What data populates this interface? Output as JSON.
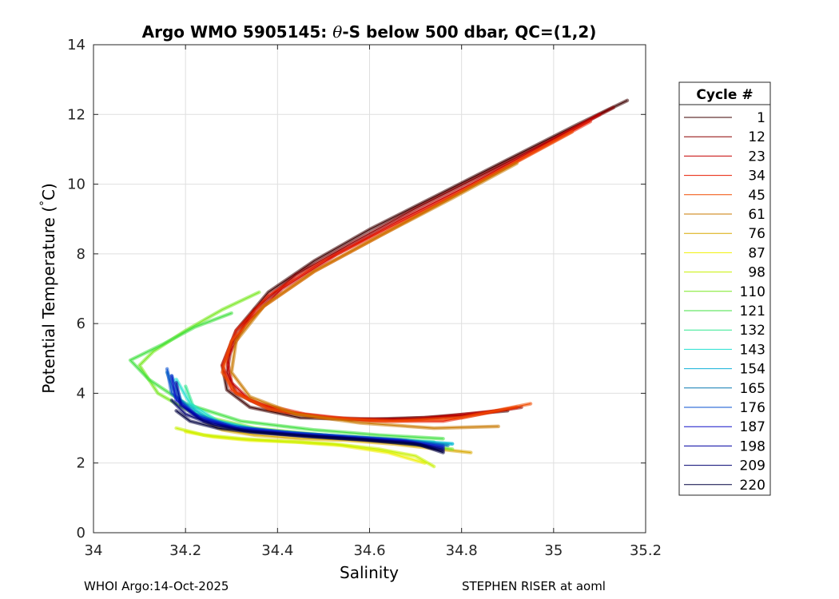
{
  "chart_data": {
    "type": "line",
    "title_prefix": "Argo WMO 5905145: ",
    "title_theta": "θ",
    "title_suffix": "-S below 500 dbar,  QC=(1,2)",
    "xlabel": "Salinity",
    "ylabel_main": "Potential Temperature (",
    "ylabel_deg": "°",
    "ylabel_end": "C)",
    "xlim": [
      34,
      35.2
    ],
    "ylim": [
      0,
      14
    ],
    "xticks": [
      34,
      34.2,
      34.4,
      34.6,
      34.8,
      35,
      35.2
    ],
    "xtick_labels": [
      "34",
      "34.2",
      "34.4",
      "34.6",
      "34.8",
      "35",
      "35.2"
    ],
    "yticks": [
      0,
      2,
      4,
      6,
      8,
      10,
      12,
      14
    ],
    "ytick_labels": [
      "0",
      "2",
      "4",
      "6",
      "8",
      "10",
      "12",
      "14"
    ],
    "grid": true,
    "legend_title": "Cycle #",
    "legend_position": "right-outside",
    "legend": [
      {
        "label": "1",
        "color": "#3d0000"
      },
      {
        "label": "12",
        "color": "#8b0000"
      },
      {
        "label": "23",
        "color": "#c40000"
      },
      {
        "label": "34",
        "color": "#e81c00"
      },
      {
        "label": "45",
        "color": "#f04a00"
      },
      {
        "label": "61",
        "color": "#c87800"
      },
      {
        "label": "76",
        "color": "#d8a800"
      },
      {
        "label": "87",
        "color": "#f0f000"
      },
      {
        "label": "98",
        "color": "#c8f000"
      },
      {
        "label": "110",
        "color": "#78e820"
      },
      {
        "label": "121",
        "color": "#40e040"
      },
      {
        "label": "132",
        "color": "#30e890"
      },
      {
        "label": "143",
        "color": "#20e0d0"
      },
      {
        "label": "154",
        "color": "#10b0d8"
      },
      {
        "label": "165",
        "color": "#0878b0"
      },
      {
        "label": "176",
        "color": "#0850d0"
      },
      {
        "label": "187",
        "color": "#1010c8"
      },
      {
        "label": "198",
        "color": "#0000a0"
      },
      {
        "label": "209",
        "color": "#000070"
      },
      {
        "label": "220",
        "color": "#000040"
      }
    ],
    "series": [
      {
        "color": "#3d0000",
        "x": [
          35.16,
          35.05,
          34.9,
          34.75,
          34.6,
          34.48,
          34.38,
          34.31,
          34.28,
          34.29,
          34.34,
          34.45,
          34.58,
          34.72,
          34.9
        ],
        "y": [
          12.4,
          11.7,
          10.7,
          9.7,
          8.7,
          7.8,
          6.9,
          5.8,
          4.8,
          4.1,
          3.6,
          3.3,
          3.25,
          3.3,
          3.5
        ]
      },
      {
        "color": "#8b0000",
        "x": [
          35.13,
          35.0,
          34.85,
          34.7,
          34.56,
          34.44,
          34.35,
          34.3,
          34.29,
          34.31,
          34.38,
          34.5,
          34.64,
          34.8,
          34.93
        ],
        "y": [
          12.2,
          11.3,
          10.3,
          9.3,
          8.3,
          7.4,
          6.4,
          5.4,
          4.6,
          4.0,
          3.55,
          3.3,
          3.25,
          3.35,
          3.6
        ]
      },
      {
        "color": "#c40000",
        "x": [
          35.1,
          34.96,
          34.82,
          34.67,
          34.53,
          34.41,
          34.33,
          34.29,
          34.3,
          34.34,
          34.42,
          34.55,
          34.7,
          34.88
        ],
        "y": [
          12.0,
          11.0,
          10.0,
          9.0,
          8.0,
          7.0,
          6.0,
          5.0,
          4.3,
          3.8,
          3.45,
          3.25,
          3.25,
          3.5
        ]
      },
      {
        "color": "#e81c00",
        "x": [
          35.08,
          34.94,
          34.8,
          34.65,
          34.5,
          34.38,
          34.31,
          34.28,
          34.3,
          34.36,
          34.46,
          34.6,
          34.76,
          34.92
        ],
        "y": [
          11.8,
          10.8,
          9.8,
          8.8,
          7.8,
          6.8,
          5.8,
          4.8,
          4.1,
          3.7,
          3.4,
          3.2,
          3.2,
          3.6
        ]
      },
      {
        "color": "#f04a00",
        "x": [
          35.04,
          34.9,
          34.76,
          34.62,
          34.48,
          34.37,
          34.3,
          34.28,
          34.31,
          34.38,
          34.5,
          34.65,
          34.8,
          34.95
        ],
        "y": [
          11.5,
          10.5,
          9.5,
          8.5,
          7.5,
          6.5,
          5.5,
          4.6,
          4.0,
          3.55,
          3.3,
          3.2,
          3.3,
          3.7
        ]
      },
      {
        "color": "#c87800",
        "x": [
          34.92,
          34.78,
          34.62,
          34.48,
          34.37,
          34.31,
          34.3,
          34.34,
          34.44,
          34.58,
          34.74,
          34.88
        ],
        "y": [
          10.6,
          9.6,
          8.5,
          7.5,
          6.5,
          5.5,
          4.6,
          3.9,
          3.4,
          3.15,
          3.0,
          3.05
        ]
      },
      {
        "color": "#d8a800",
        "x": [
          34.24,
          34.28,
          34.35,
          34.45,
          34.55,
          34.65,
          34.75,
          34.82
        ],
        "y": [
          3.2,
          2.95,
          2.8,
          2.7,
          2.65,
          2.55,
          2.4,
          2.3
        ]
      },
      {
        "color": "#f0f000",
        "x": [
          34.2,
          34.26,
          34.34,
          34.44,
          34.54,
          34.64,
          34.72
        ],
        "y": [
          2.9,
          2.75,
          2.65,
          2.6,
          2.5,
          2.3,
          2.0
        ]
      },
      {
        "color": "#c8f000",
        "x": [
          34.18,
          34.24,
          34.32,
          34.42,
          34.52,
          34.62,
          34.7,
          34.74
        ],
        "y": [
          3.0,
          2.8,
          2.7,
          2.62,
          2.55,
          2.4,
          2.2,
          1.9
        ]
      },
      {
        "color": "#78e820",
        "x": [
          34.36,
          34.28,
          34.2,
          34.13,
          34.1,
          34.14,
          34.22,
          34.35,
          34.5,
          34.66,
          34.78
        ],
        "y": [
          6.9,
          6.4,
          5.8,
          5.2,
          4.8,
          4.0,
          3.4,
          3.0,
          2.8,
          2.6,
          2.4
        ]
      },
      {
        "color": "#40e040",
        "x": [
          34.3,
          34.22,
          34.15,
          34.08,
          34.12,
          34.2,
          34.32,
          34.48,
          34.62,
          34.76
        ],
        "y": [
          6.3,
          5.9,
          5.4,
          4.95,
          4.4,
          3.7,
          3.2,
          2.95,
          2.8,
          2.7
        ]
      },
      {
        "color": "#30e890",
        "x": [
          34.2,
          34.22,
          34.28,
          34.38,
          34.5,
          34.62,
          34.74
        ],
        "y": [
          4.2,
          3.5,
          3.1,
          2.9,
          2.8,
          2.7,
          2.6
        ]
      },
      {
        "color": "#20e0d0",
        "x": [
          34.18,
          34.21,
          34.27,
          34.36,
          34.48,
          34.6,
          34.72,
          34.78
        ],
        "y": [
          4.4,
          3.7,
          3.2,
          2.95,
          2.8,
          2.7,
          2.6,
          2.55
        ]
      },
      {
        "color": "#10b0d8",
        "x": [
          34.17,
          34.19,
          34.25,
          34.34,
          34.46,
          34.58,
          34.7,
          34.78
        ],
        "y": [
          4.5,
          3.8,
          3.25,
          2.98,
          2.82,
          2.72,
          2.62,
          2.55
        ]
      },
      {
        "color": "#0878b0",
        "x": [
          34.16,
          34.18,
          34.23,
          34.32,
          34.44,
          34.56,
          34.68,
          34.77
        ],
        "y": [
          4.6,
          3.9,
          3.3,
          3.0,
          2.85,
          2.75,
          2.65,
          2.5
        ]
      },
      {
        "color": "#0850d0",
        "x": [
          34.16,
          34.17,
          34.22,
          34.3,
          34.42,
          34.54,
          34.66,
          34.76
        ],
        "y": [
          4.7,
          4.0,
          3.4,
          3.05,
          2.88,
          2.76,
          2.66,
          2.5
        ]
      },
      {
        "color": "#1010c8",
        "x": [
          34.17,
          34.18,
          34.23,
          34.31,
          34.43,
          34.55,
          34.67,
          34.76
        ],
        "y": [
          4.5,
          3.8,
          3.3,
          3.0,
          2.85,
          2.74,
          2.64,
          2.45
        ]
      },
      {
        "color": "#0000a0",
        "x": [
          34.18,
          34.19,
          34.24,
          34.32,
          34.44,
          34.56,
          34.68,
          34.76
        ],
        "y": [
          4.3,
          3.65,
          3.2,
          2.95,
          2.8,
          2.7,
          2.6,
          2.4
        ]
      },
      {
        "color": "#000070",
        "x": [
          34.17,
          34.2,
          34.26,
          34.34,
          34.46,
          34.58,
          34.7,
          34.76
        ],
        "y": [
          3.8,
          3.4,
          3.1,
          2.9,
          2.78,
          2.68,
          2.55,
          2.35
        ]
      },
      {
        "color": "#000040",
        "x": [
          34.18,
          34.21,
          34.27,
          34.35,
          34.47,
          34.59,
          34.71,
          34.76
        ],
        "y": [
          3.5,
          3.2,
          3.0,
          2.88,
          2.76,
          2.66,
          2.52,
          2.3
        ]
      }
    ]
  },
  "footer": {
    "left": "WHOI Argo:14-Oct-2025",
    "right": "STEPHEN RISER at aoml"
  }
}
